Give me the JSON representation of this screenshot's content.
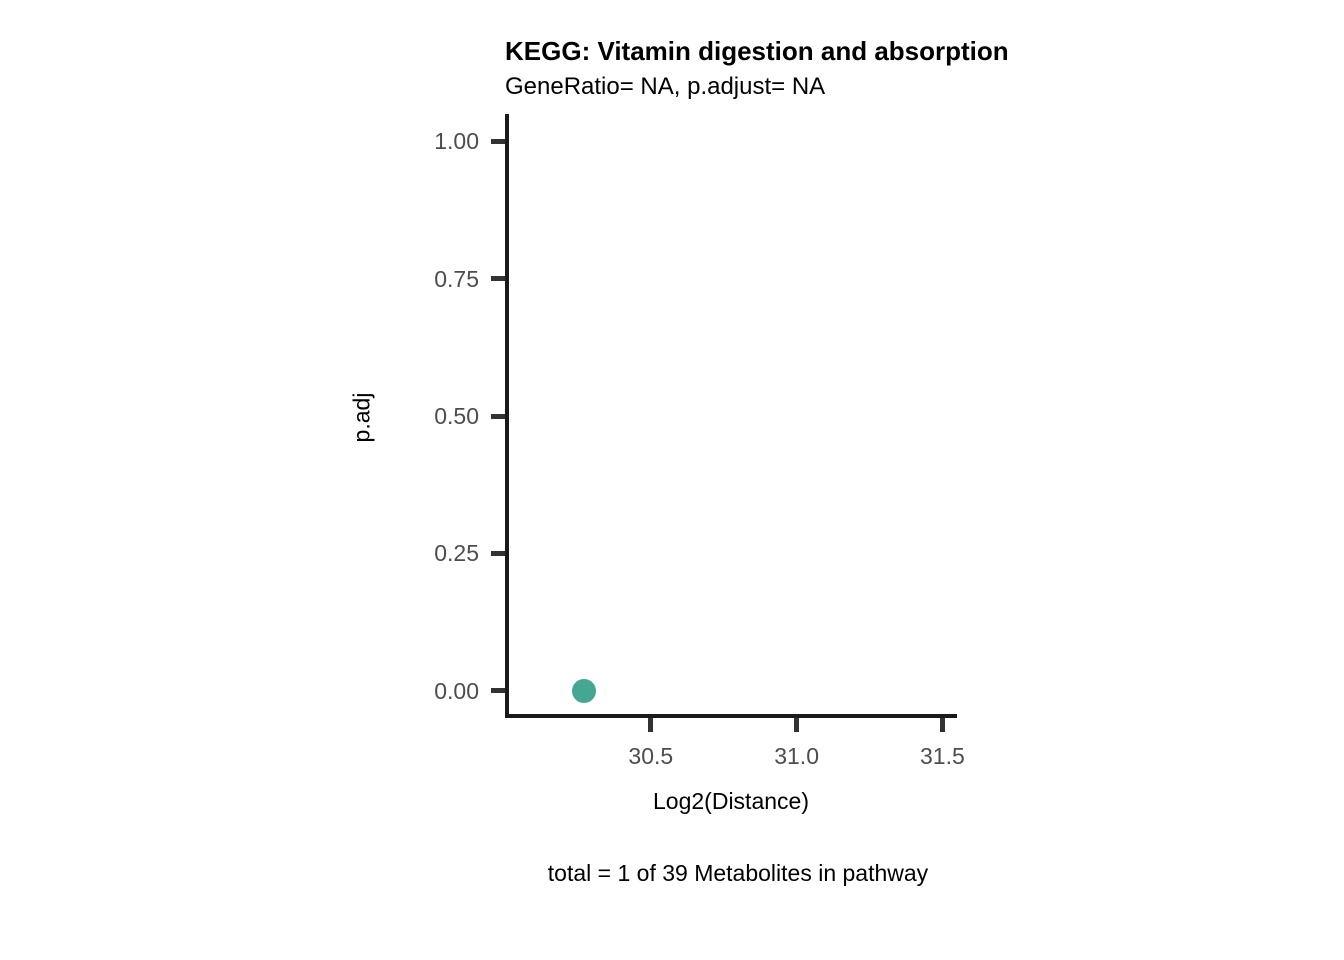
{
  "page": {
    "background": "#ffffff"
  },
  "chart_data": {
    "type": "scatter",
    "title": "KEGG: Vitamin digestion and absorption",
    "subtitle": "GeneRatio= NA, p.adjust= NA",
    "xlabel": "Log2(Distance)",
    "ylabel": "p.adj",
    "caption": "total = 1 of 39 Metabolites in pathway",
    "xlim": [
      30.0,
      31.55
    ],
    "ylim": [
      -0.05,
      1.05
    ],
    "xticks": {
      "values": [
        30.5,
        31.0,
        31.5
      ],
      "labels": [
        "30.5",
        "31.0",
        "31.5"
      ]
    },
    "yticks": {
      "values": [
        0.0,
        0.25,
        0.5,
        0.75,
        1.0
      ],
      "labels": [
        "0.00",
        "0.25",
        "0.50",
        "0.75",
        "1.00"
      ]
    },
    "series": [
      {
        "name": "pathway-point",
        "color": "#45a692",
        "point_radius": 12,
        "points": [
          {
            "x": 30.27,
            "y": 0.0
          }
        ]
      }
    ],
    "grid": false,
    "legend": "none",
    "colors": {
      "axis_line": "#1a1a1a",
      "tick_mark": "#333333",
      "tick_label": "#4d4d4d",
      "text": "#000000"
    }
  }
}
